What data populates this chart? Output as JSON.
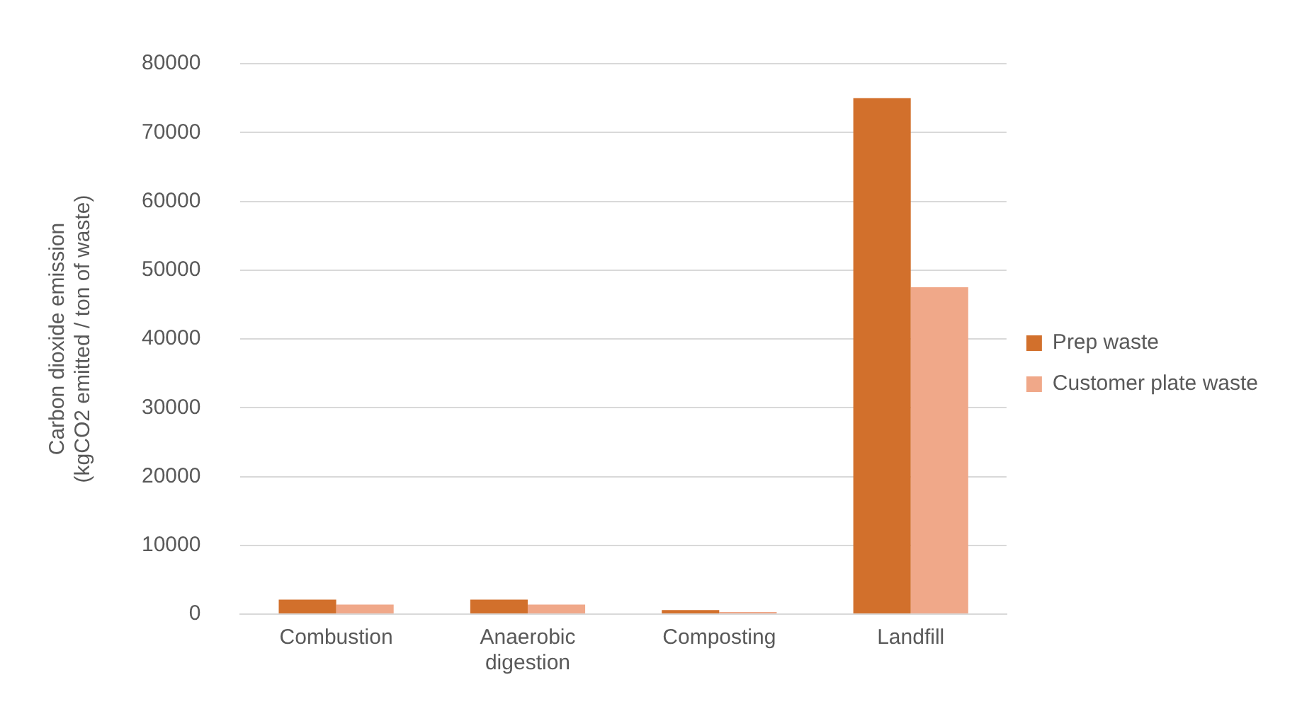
{
  "chart_data": {
    "type": "bar",
    "ylabel": "Carbon dioxide emission\n(kgCO2 emitted / ton of waste)",
    "categories": [
      "Combustion",
      "Anaerobic\ndigestion",
      "Composting",
      "Landfill"
    ],
    "series": [
      {
        "name": "Prep waste",
        "color": "#d2702c",
        "values": [
          2100,
          2100,
          600,
          75000
        ]
      },
      {
        "name": "Customer plate waste",
        "color": "#f0a889",
        "values": [
          1400,
          1400,
          300,
          47500
        ]
      }
    ],
    "ylim": [
      0,
      80000
    ],
    "yticks": [
      0,
      10000,
      20000,
      30000,
      40000,
      50000,
      60000,
      70000,
      80000
    ],
    "grid": "y",
    "legend": "right"
  }
}
